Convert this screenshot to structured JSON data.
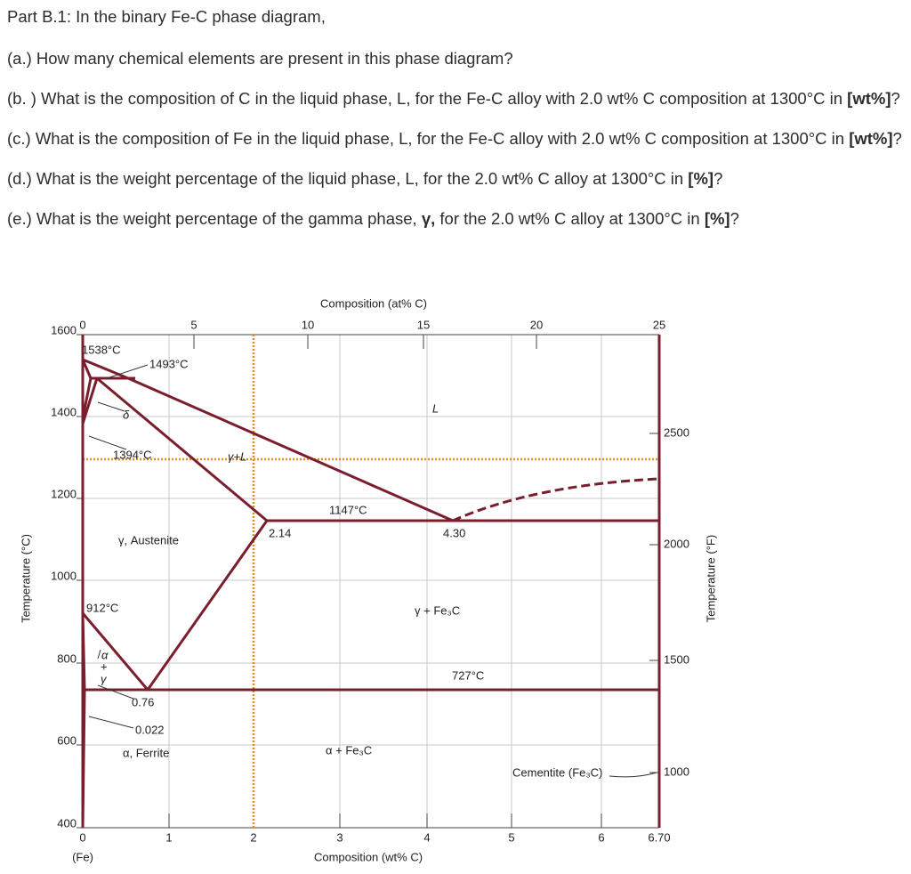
{
  "questions": {
    "title": "Part B.1: In the binary Fe-C phase diagram,",
    "items": [
      [
        "(a.) How many chemical elements are present in this phase diagram?"
      ],
      [
        "(b. ) What is the composition of C in the liquid phase, L,  for the Fe-C alloy with 2.0 wt% C composition at 1300°C in ",
        "[wt%]",
        "?"
      ],
      [
        "(c.) What is the composition of Fe in the liquid phase, L, for the Fe-C alloy with 2.0 wt% C composition at 1300°C in ",
        "[wt%]",
        "?"
      ],
      [
        "(d.) What is the weight percentage of the liquid phase, L, for the 2.0 wt% C alloy at 1300°C in ",
        "[%]",
        "?"
      ],
      [
        "(e.) What is the weight percentage of the gamma phase, ",
        "γ,",
        "  for the 2.0 wt% C alloy at 1300°C in ",
        "[%]",
        "?"
      ]
    ]
  },
  "diagram": {
    "top_axis_title": "Composition (at% C)",
    "top_ticks": [
      "0",
      "5",
      "10",
      "15",
      "20",
      "25"
    ],
    "left_axis_title": "Temperature (°C)",
    "left_ticks": [
      "1600",
      "1400",
      "1200",
      "1000",
      "800",
      "600",
      "400"
    ],
    "right_axis_title": "Temperature (°F)",
    "right_ticks": [
      "2500",
      "2000",
      "1500",
      "1000"
    ],
    "bottom_axis_title": "Composition (wt% C)",
    "bottom_ticks": [
      "0",
      "1",
      "2",
      "3",
      "4",
      "5",
      "6",
      "6.70"
    ],
    "bottom_note": "(Fe)",
    "labels": {
      "t1538": "1538°C",
      "t1493": "1493°C",
      "delta": "δ",
      "t1394": "1394°C",
      "gamma_l": "γ+L",
      "liquid": "L",
      "t1147": "1147°C",
      "c214": "2.14",
      "c430": "4.30",
      "austenite": "γ, Austenite",
      "t912": "912°C",
      "gamma_fe3c": "γ + Fe₃C",
      "alpha_gamma": [
        "α",
        "+",
        "γ"
      ],
      "t727": "727°C",
      "c076": "0.76",
      "c0022": "0.022",
      "ferrite": "α, Ferrite",
      "alpha_fe3c": "α + Fe₃C",
      "cementite": "Cementite (Fe₃C)"
    }
  }
}
